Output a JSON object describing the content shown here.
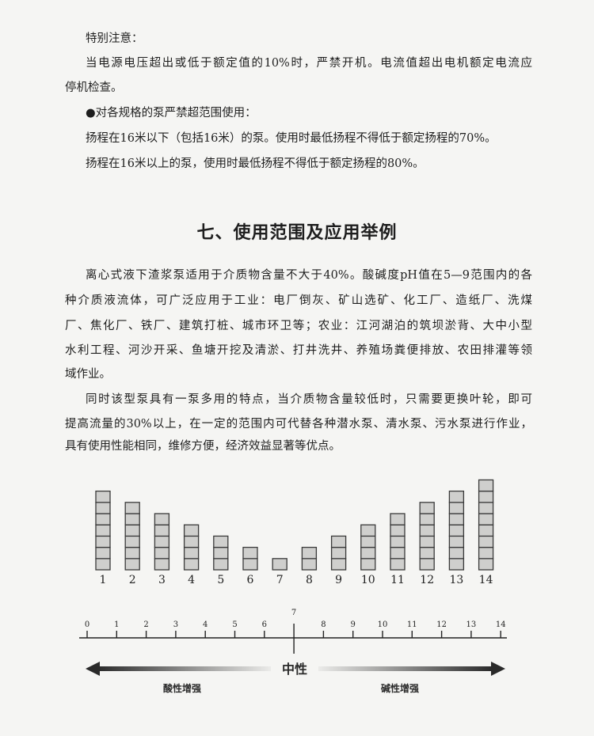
{
  "notice": {
    "heading": "特别注意：",
    "para1": [
      "当电源电压超出或低于额定值的10%时，严禁开机。电流值超出电机额定电流应",
      "停机检查。"
    ],
    "bullet": "●对各规格的泵严禁超范围使用：",
    "line_a": "扬程在16米以下（包括16米）的泵。使用时最低扬程不得低于额定扬程的70%。",
    "line_b": "扬程在16米以上的泵，使用时最低扬程不得低于额定扬程的80%。"
  },
  "section": {
    "title": "七、使用范围及应用举例",
    "para1": [
      "离心式液下渣浆泵适用于介质物含量不大于40%。酸碱度pH值在5—9范围内的各",
      "种介质液流体，可广泛应用于工业：电厂倒灰、矿山选矿、化工厂、造纸厂、洗煤",
      "厂、焦化厂、铁厂、建筑打桩、城市环卫等；农业：江河湖泊的筑坝淤背、大中小型",
      "水利工程、河沙开采、鱼塘开挖及清淤、打井洗井、养殖场粪便排放、农田排灌等领",
      "域作业。"
    ],
    "para2": [
      "同时该型泵具有一泵多用的特点，当介质物含量较低时，只需要更换叶轮，即可",
      "提高流量的30%以上，在一定的范围内可代替各种潜水泵、清水泵、污水泵进行作业，",
      "具有使用性能相同，维修方便，经济效益显著等优点。"
    ]
  },
  "chart_data": {
    "type": "bar",
    "categories": [
      "1",
      "2",
      "3",
      "4",
      "5",
      "6",
      "7",
      "8",
      "9",
      "10",
      "11",
      "12",
      "13",
      "14"
    ],
    "values": [
      7,
      6,
      5,
      4,
      3,
      2,
      1,
      2,
      3,
      4,
      5,
      6,
      7,
      8
    ],
    "scale": {
      "ticks": [
        "0",
        "1",
        "2",
        "3",
        "4",
        "5",
        "6",
        "7",
        "8",
        "9",
        "10",
        "11",
        "12",
        "13",
        "14"
      ],
      "neutral_label": "中性",
      "left_label": "酸性增强",
      "right_label": "碱性增强"
    },
    "colors": {
      "block_fill": "#cfcfcd",
      "block_stroke": "#3a3a3a"
    }
  }
}
